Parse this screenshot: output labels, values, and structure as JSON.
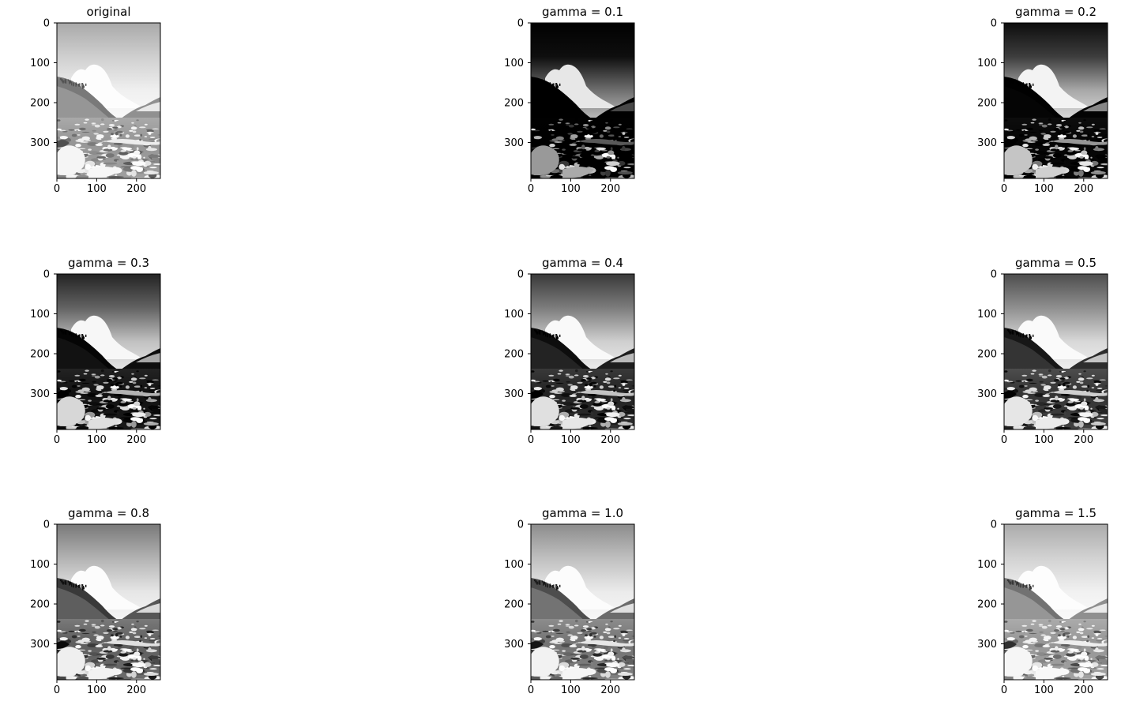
{
  "figure": {
    "background": "#ffffff",
    "axis_color": "#000000",
    "image_colormap": "gray",
    "image_shape": {
      "height": 390,
      "width": 260
    },
    "x_ticks": [
      0,
      100,
      200
    ],
    "y_ticks": [
      0,
      100,
      200,
      300
    ],
    "subplots": [
      {
        "title": "original",
        "gamma": null
      },
      {
        "title": "gamma = 0.1",
        "gamma": 0.1
      },
      {
        "title": "gamma = 0.2",
        "gamma": 0.2
      },
      {
        "title": "gamma = 0.3",
        "gamma": 0.3
      },
      {
        "title": "gamma = 0.4",
        "gamma": 0.4
      },
      {
        "title": "gamma = 0.5",
        "gamma": 0.5
      },
      {
        "title": "gamma = 0.8",
        "gamma": 0.8
      },
      {
        "title": "gamma = 1.0",
        "gamma": 1.0
      },
      {
        "title": "gamma = 1.5",
        "gamma": 1.5
      }
    ]
  }
}
